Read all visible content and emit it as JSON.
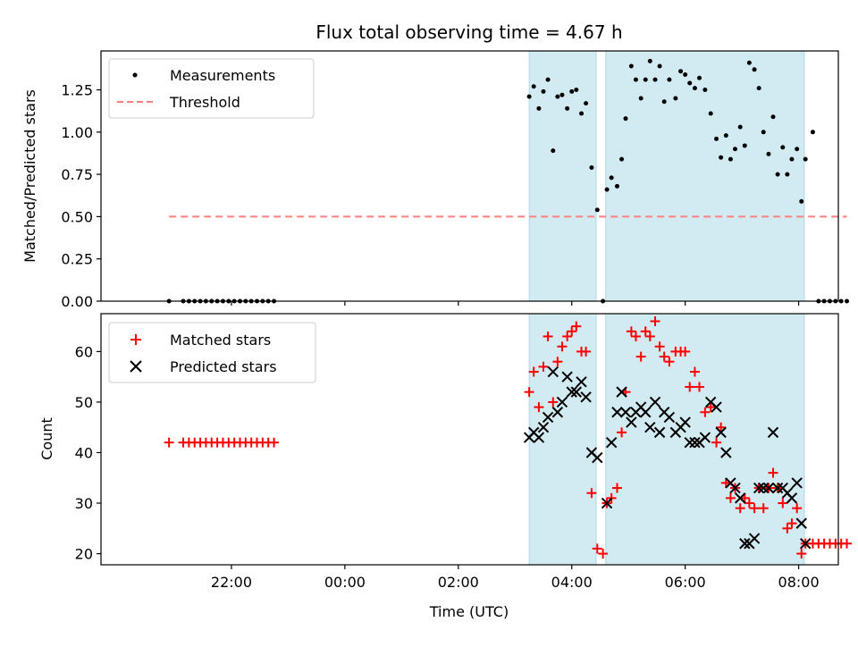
{
  "chart_data": {
    "type": "scatter",
    "title": "Flux total observing time = 4.67 h",
    "xlabel": "Time (UTC)",
    "x_tick_labels": [
      "22:00",
      "00:00",
      "02:00",
      "04:00",
      "06:00",
      "08:00"
    ],
    "x_ticks_hours": [
      22,
      24,
      26,
      28,
      30,
      32
    ],
    "xlim_hours": [
      19.7,
      32.7
    ],
    "colors": {
      "shade": "#add8e6",
      "threshold": "#ff7f7f",
      "measurement": "#000000",
      "matched": "#ff0000",
      "predicted": "#000000"
    },
    "shaded_intervals_hours": [
      [
        27.25,
        28.43
      ],
      [
        28.6,
        32.1
      ]
    ],
    "top": {
      "ylabel": "Matched/Predicted stars",
      "ylim": [
        0,
        1.48
      ],
      "y_ticks": [
        0.0,
        0.25,
        0.5,
        0.75,
        1.0,
        1.25
      ],
      "y_tick_labels": [
        "0.00",
        "0.25",
        "0.50",
        "0.75",
        "1.00",
        "1.25"
      ],
      "legend": [
        "Measurements",
        "Threshold"
      ],
      "threshold": {
        "value": 0.5,
        "x_range_hours": [
          20.9,
          32.85
        ]
      },
      "measurements": {
        "x_hours": [
          20.9,
          21.15,
          21.25,
          21.35,
          21.45,
          21.55,
          21.65,
          21.75,
          21.85,
          21.95,
          22.05,
          22.15,
          22.25,
          22.35,
          22.45,
          22.55,
          22.65,
          22.75,
          27.25,
          27.33,
          27.42,
          27.5,
          27.58,
          27.67,
          27.75,
          27.83,
          27.92,
          28.0,
          28.08,
          28.17,
          28.25,
          28.35,
          28.45,
          28.55,
          28.62,
          28.7,
          28.8,
          28.88,
          28.95,
          29.05,
          29.13,
          29.22,
          29.3,
          29.38,
          29.47,
          29.55,
          29.63,
          29.72,
          29.83,
          29.92,
          30.0,
          30.08,
          30.17,
          30.25,
          30.35,
          30.45,
          30.55,
          30.63,
          30.72,
          30.8,
          30.88,
          30.97,
          31.05,
          31.13,
          31.22,
          31.3,
          31.38,
          31.47,
          31.55,
          31.63,
          31.72,
          31.8,
          31.88,
          31.97,
          32.05,
          32.12,
          32.25,
          32.35,
          32.45,
          32.55,
          32.65,
          32.75,
          32.85
        ],
        "y": [
          0,
          0,
          0,
          0,
          0,
          0,
          0,
          0,
          0,
          0,
          0,
          0,
          0,
          0,
          0,
          0,
          0,
          0,
          1.21,
          1.27,
          1.14,
          1.24,
          1.31,
          0.89,
          1.21,
          1.22,
          1.14,
          1.24,
          1.25,
          1.11,
          1.17,
          0.79,
          0.54,
          0,
          0.66,
          0.73,
          0.68,
          0.84,
          1.08,
          1.39,
          1.31,
          1.2,
          1.31,
          1.42,
          1.31,
          1.39,
          1.18,
          1.31,
          1.2,
          1.36,
          1.34,
          1.29,
          1.26,
          1.32,
          1.25,
          1.11,
          0.96,
          0.85,
          0.98,
          0.84,
          0.9,
          1.03,
          0.92,
          1.41,
          1.37,
          1.26,
          1.0,
          0.87,
          1.09,
          0.75,
          0.91,
          0.75,
          0.84,
          0.9,
          0.59,
          0.84,
          1.0,
          0,
          0,
          0,
          0,
          0,
          0
        ]
      }
    },
    "bottom": {
      "ylabel": "Count",
      "ylim": [
        17.8,
        67.5
      ],
      "y_ticks": [
        20,
        30,
        40,
        50,
        60
      ],
      "y_tick_labels": [
        "20",
        "30",
        "40",
        "50",
        "60"
      ],
      "legend": [
        "Matched stars",
        "Predicted stars"
      ],
      "matched": {
        "x_hours": [
          20.9,
          21.15,
          21.25,
          21.35,
          21.45,
          21.55,
          21.65,
          21.75,
          21.85,
          21.95,
          22.05,
          22.15,
          22.25,
          22.35,
          22.45,
          22.55,
          22.65,
          22.75,
          27.25,
          27.33,
          27.42,
          27.5,
          27.58,
          27.67,
          27.75,
          27.83,
          27.92,
          28.0,
          28.08,
          28.17,
          28.25,
          28.35,
          28.45,
          28.55,
          28.62,
          28.7,
          28.8,
          28.88,
          28.95,
          29.05,
          29.13,
          29.22,
          29.3,
          29.38,
          29.47,
          29.55,
          29.63,
          29.72,
          29.83,
          29.92,
          30.0,
          30.08,
          30.17,
          30.25,
          30.35,
          30.45,
          30.55,
          30.63,
          30.72,
          30.8,
          30.88,
          30.97,
          31.05,
          31.13,
          31.22,
          31.3,
          31.38,
          31.47,
          31.55,
          31.63,
          31.72,
          31.8,
          31.88,
          31.97,
          32.05,
          32.12,
          32.25,
          32.35,
          32.45,
          32.55,
          32.65,
          32.75,
          32.85
        ],
        "y": [
          42,
          42,
          42,
          42,
          42,
          42,
          42,
          42,
          42,
          42,
          42,
          42,
          42,
          42,
          42,
          42,
          42,
          42,
          52,
          56,
          49,
          57,
          63,
          50,
          58,
          61,
          63,
          64,
          65,
          60,
          60,
          32,
          21,
          20,
          30,
          31,
          33,
          44,
          52,
          64,
          63,
          59,
          64,
          63,
          66,
          61,
          59,
          58,
          60,
          60,
          60,
          53,
          56,
          53,
          48,
          49,
          42,
          45,
          34,
          31,
          33,
          29,
          31,
          30,
          29,
          33,
          29,
          33,
          36,
          33,
          30,
          25,
          26,
          29,
          20,
          22,
          22,
          22,
          22,
          22,
          22,
          22,
          22
        ]
      },
      "predicted": {
        "x_hours": [
          27.25,
          27.33,
          27.42,
          27.5,
          27.58,
          27.67,
          27.75,
          27.83,
          27.92,
          28.0,
          28.08,
          28.17,
          28.25,
          28.35,
          28.45,
          28.62,
          28.7,
          28.8,
          28.88,
          28.95,
          29.05,
          29.13,
          29.22,
          29.3,
          29.38,
          29.47,
          29.55,
          29.63,
          29.72,
          29.83,
          29.92,
          30.0,
          30.08,
          30.17,
          30.25,
          30.35,
          30.45,
          30.55,
          30.63,
          30.72,
          30.8,
          30.88,
          30.97,
          31.05,
          31.13,
          31.22,
          31.3,
          31.38,
          31.47,
          31.55,
          31.63,
          31.72,
          31.8,
          31.88,
          31.97,
          32.05,
          32.12
        ],
        "y": [
          43,
          44,
          43,
          45,
          47,
          56,
          48,
          50,
          55,
          52,
          52,
          54,
          51,
          40,
          39,
          30,
          42,
          48,
          52,
          48,
          46,
          48,
          49,
          48,
          45,
          50,
          44,
          48,
          47,
          44,
          45,
          46,
          42,
          42,
          42,
          43,
          50,
          49,
          44,
          40,
          34,
          33,
          31,
          22,
          22,
          23,
          33,
          33,
          33,
          44,
          33,
          33,
          32,
          31,
          34,
          26,
          22
        ]
      }
    }
  }
}
